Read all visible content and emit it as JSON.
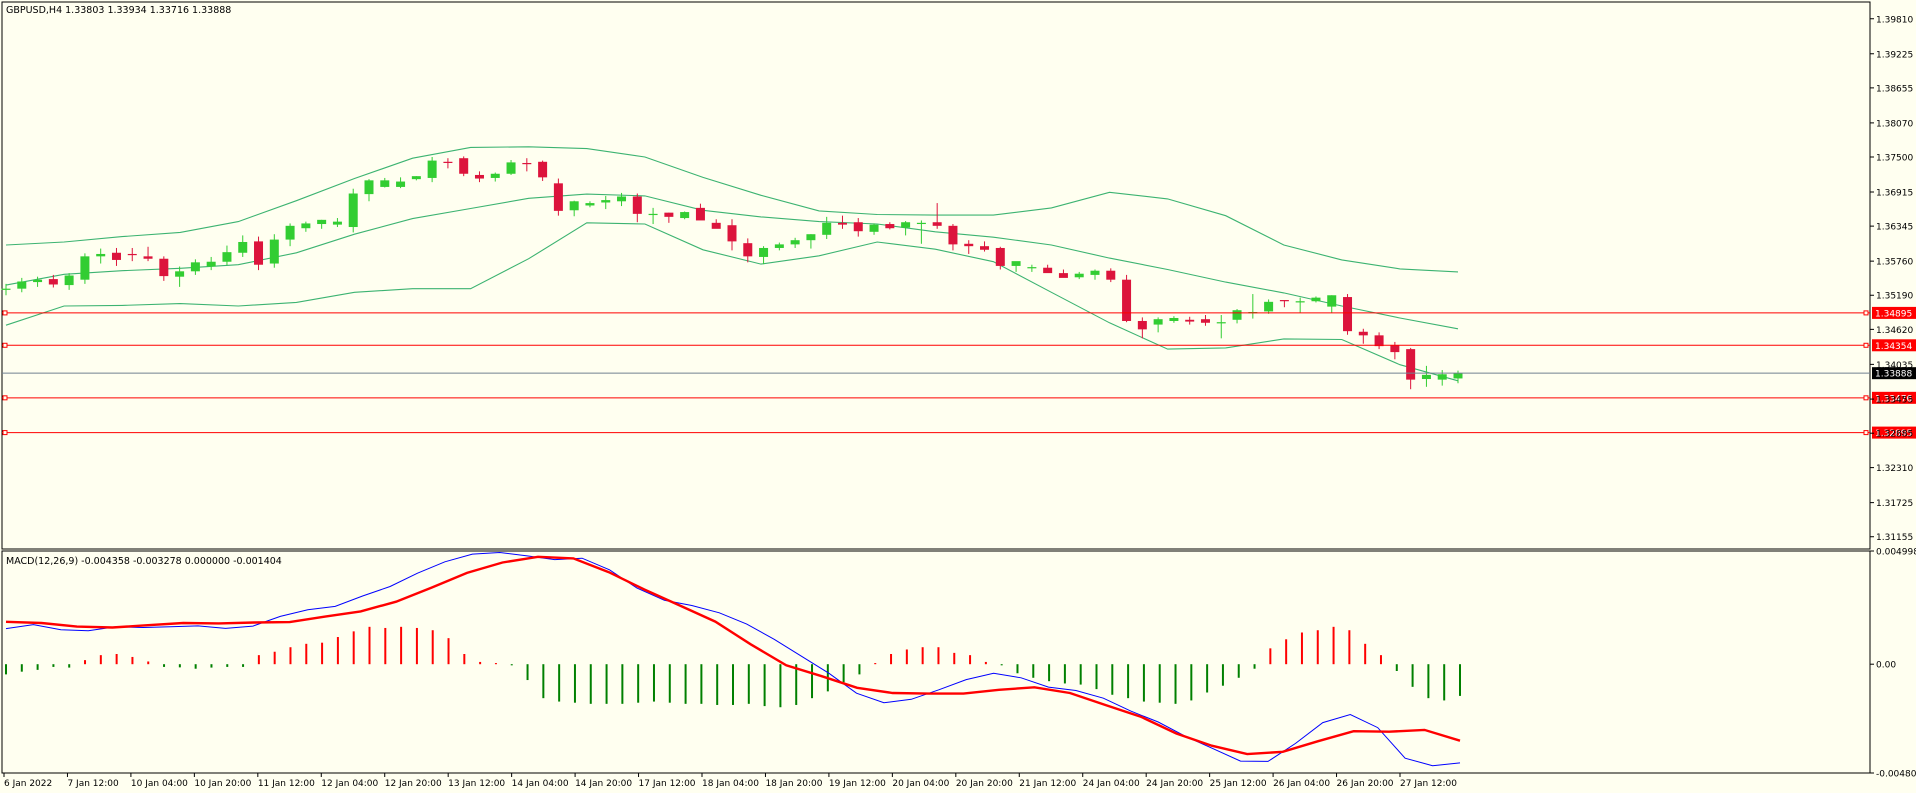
{
  "chart_data": [
    {
      "type": "candlestick",
      "title": "GBPUSD,H4  1.33803 1.33934 1.33716 1.33888",
      "symbol": "GBPUSD",
      "timeframe": "H4",
      "last_ohlc": {
        "open": 1.33803,
        "high": 1.33934,
        "low": 1.33716,
        "close": 1.33888
      },
      "current_price_label": "1.33888",
      "ylim": [
        1.3095,
        1.4009
      ],
      "price_ticks": [
        "1.39810",
        "1.39225",
        "1.38655",
        "1.38070",
        "1.37500",
        "1.36915",
        "1.36345",
        "1.35760",
        "1.35190",
        "1.34620",
        "1.34035",
        "1.33455",
        "1.32885",
        "1.32310",
        "1.31725",
        "1.31155"
      ],
      "x_labels": [
        "6 Jan 2022",
        "7 Jan 12:00",
        "10 Jan 04:00",
        "10 Jan 20:00",
        "11 Jan 12:00",
        "12 Jan 04:00",
        "12 Jan 20:00",
        "13 Jan 12:00",
        "14 Jan 04:00",
        "14 Jan 20:00",
        "17 Jan 12:00",
        "18 Jan 04:00",
        "18 Jan 20:00",
        "19 Jan 12:00",
        "20 Jan 04:00",
        "20 Jan 20:00",
        "21 Jan 12:00",
        "24 Jan 04:00",
        "24 Jan 20:00",
        "25 Jan 12:00",
        "26 Jan 04:00",
        "26 Jan 20:00",
        "27 Jan 12:00"
      ],
      "horizontal_levels": [
        {
          "price": 1.34895,
          "label": "1.34895"
        },
        {
          "price": 1.34354,
          "label": "1.34354"
        },
        {
          "price": 1.33476,
          "label": "1.33476"
        },
        {
          "price": 1.32895,
          "label": "1.32895"
        }
      ],
      "candles": [
        [
          1.3528,
          1.3538,
          1.3519,
          1.353
        ],
        [
          1.353,
          1.3548,
          1.3524,
          1.3542
        ],
        [
          1.3541,
          1.355,
          1.3533,
          1.3545
        ],
        [
          1.3546,
          1.3553,
          1.3532,
          1.3537
        ],
        [
          1.3536,
          1.3556,
          1.3528,
          1.3552
        ],
        [
          1.3545,
          1.3589,
          1.3538,
          1.3584
        ],
        [
          1.3584,
          1.3597,
          1.3572,
          1.3588
        ],
        [
          1.359,
          1.3598,
          1.3568,
          1.3578
        ],
        [
          1.3588,
          1.3598,
          1.3576,
          1.3586
        ],
        [
          1.3584,
          1.36,
          1.3576,
          1.358
        ],
        [
          1.358,
          1.3584,
          1.3543,
          1.3551
        ],
        [
          1.355,
          1.3567,
          1.3533,
          1.3559
        ],
        [
          1.3559,
          1.3579,
          1.3553,
          1.3574
        ],
        [
          1.3567,
          1.3583,
          1.3561,
          1.3575
        ],
        [
          1.3575,
          1.3602,
          1.3569,
          1.3591
        ],
        [
          1.359,
          1.3619,
          1.3583,
          1.3608
        ],
        [
          1.3609,
          1.3617,
          1.3561,
          1.357
        ],
        [
          1.3572,
          1.3621,
          1.3565,
          1.3612
        ],
        [
          1.3612,
          1.3639,
          1.3601,
          1.3635
        ],
        [
          1.3631,
          1.3642,
          1.3625,
          1.3639
        ],
        [
          1.3638,
          1.3645,
          1.363,
          1.3645
        ],
        [
          1.3637,
          1.3648,
          1.3633,
          1.3642
        ],
        [
          1.3633,
          1.3697,
          1.3624,
          1.3689
        ],
        [
          1.3688,
          1.3713,
          1.3676,
          1.3711
        ],
        [
          1.37,
          1.3715,
          1.3699,
          1.3711
        ],
        [
          1.37,
          1.3716,
          1.3698,
          1.3709
        ],
        [
          1.3713,
          1.3718,
          1.3711,
          1.3718
        ],
        [
          1.3715,
          1.375,
          1.3708,
          1.3744
        ],
        [
          1.3742,
          1.3748,
          1.3731,
          1.3741
        ],
        [
          1.3748,
          1.3751,
          1.3718,
          1.3722
        ],
        [
          1.372,
          1.3726,
          1.3708,
          1.3714
        ],
        [
          1.3715,
          1.3724,
          1.3709,
          1.3722
        ],
        [
          1.3722,
          1.3745,
          1.372,
          1.3741
        ],
        [
          1.374,
          1.3748,
          1.3726,
          1.3738
        ],
        [
          1.3742,
          1.3744,
          1.371,
          1.3716
        ],
        [
          1.3706,
          1.3714,
          1.3652,
          1.366
        ],
        [
          1.3661,
          1.3677,
          1.3651,
          1.3676
        ],
        [
          1.3669,
          1.3676,
          1.3666,
          1.3673
        ],
        [
          1.3674,
          1.3685,
          1.3663,
          1.3678
        ],
        [
          1.3676,
          1.369,
          1.3668,
          1.3684
        ],
        [
          1.3684,
          1.3689,
          1.3641,
          1.3655
        ],
        [
          1.3655,
          1.3665,
          1.3638,
          1.3655
        ],
        [
          1.3657,
          1.3657,
          1.364,
          1.365
        ],
        [
          1.3648,
          1.3659,
          1.3646,
          1.3658
        ],
        [
          1.3665,
          1.3672,
          1.3648,
          1.3644
        ],
        [
          1.364,
          1.3646,
          1.3633,
          1.363
        ],
        [
          1.3636,
          1.3646,
          1.3594,
          1.3609
        ],
        [
          1.3606,
          1.3614,
          1.3574,
          1.3584
        ],
        [
          1.3583,
          1.3601,
          1.3571,
          1.3598
        ],
        [
          1.3598,
          1.3607,
          1.3594,
          1.3604
        ],
        [
          1.3604,
          1.3615,
          1.3598,
          1.3611
        ],
        [
          1.3611,
          1.3621,
          1.3597,
          1.3621
        ],
        [
          1.362,
          1.365,
          1.3613,
          1.364
        ],
        [
          1.364,
          1.3652,
          1.363,
          1.3637
        ],
        [
          1.3641,
          1.3648,
          1.3617,
          1.3626
        ],
        [
          1.3625,
          1.3639,
          1.362,
          1.3637
        ],
        [
          1.3638,
          1.3641,
          1.3629,
          1.3631
        ],
        [
          1.3632,
          1.3643,
          1.3619,
          1.3641
        ],
        [
          1.3638,
          1.3644,
          1.3605,
          1.364
        ],
        [
          1.3641,
          1.3673,
          1.363,
          1.3635
        ],
        [
          1.3635,
          1.3638,
          1.3594,
          1.3604
        ],
        [
          1.3605,
          1.3611,
          1.3588,
          1.3601
        ],
        [
          1.3601,
          1.3609,
          1.3592,
          1.3595
        ],
        [
          1.3598,
          1.36,
          1.3562,
          1.3568
        ],
        [
          1.3568,
          1.3574,
          1.3558,
          1.3576
        ],
        [
          1.3566,
          1.357,
          1.3558,
          1.3566
        ],
        [
          1.3565,
          1.357,
          1.3558,
          1.3556
        ],
        [
          1.3556,
          1.3562,
          1.3551,
          1.3548
        ],
        [
          1.3549,
          1.3558,
          1.3546,
          1.3555
        ],
        [
          1.3553,
          1.3562,
          1.3545,
          1.356
        ],
        [
          1.356,
          1.3564,
          1.3541,
          1.3545
        ],
        [
          1.3545,
          1.3553,
          1.3474,
          1.3476
        ],
        [
          1.3476,
          1.3482,
          1.3447,
          1.3462
        ],
        [
          1.347,
          1.3482,
          1.3457,
          1.3479
        ],
        [
          1.3476,
          1.3484,
          1.3473,
          1.3481
        ],
        [
          1.3478,
          1.3483,
          1.347,
          1.3475
        ],
        [
          1.3479,
          1.3486,
          1.3468,
          1.3473
        ],
        [
          1.3473,
          1.3486,
          1.3447,
          1.3474
        ],
        [
          1.3478,
          1.3496,
          1.3472,
          1.3494
        ],
        [
          1.349,
          1.3521,
          1.348,
          1.3491
        ],
        [
          1.3492,
          1.3512,
          1.3488,
          1.3508
        ],
        [
          1.3511,
          1.3511,
          1.3499,
          1.3509
        ],
        [
          1.3508,
          1.3515,
          1.349,
          1.3509
        ],
        [
          1.3509,
          1.3517,
          1.3507,
          1.3515
        ],
        [
          1.35,
          1.3519,
          1.349,
          1.3519
        ],
        [
          1.3516,
          1.3521,
          1.3453,
          1.3459
        ],
        [
          1.3458,
          1.3463,
          1.3438,
          1.3452
        ],
        [
          1.3452,
          1.3457,
          1.3429,
          1.3434
        ],
        [
          1.3435,
          1.3441,
          1.3412,
          1.3424
        ],
        [
          1.3429,
          1.3431,
          1.3362,
          1.3378
        ],
        [
          1.3379,
          1.3401,
          1.3366,
          1.3386
        ],
        [
          1.3378,
          1.3394,
          1.3368,
          1.3387
        ],
        [
          1.338,
          1.3393,
          1.3372,
          1.3389
        ]
      ],
      "bollinger": {
        "upper": [
          1.3603,
          1.3608,
          1.3617,
          1.3624,
          1.3642,
          1.3677,
          1.3714,
          1.3748,
          1.3766,
          1.3767,
          1.3764,
          1.375,
          1.3716,
          1.3686,
          1.366,
          1.3654,
          1.3653,
          1.3653,
          1.3665,
          1.3691,
          1.368,
          1.3652,
          1.3603,
          1.3578,
          1.3563,
          1.3558
        ],
        "middle": [
          1.3536,
          1.3554,
          1.356,
          1.3564,
          1.357,
          1.359,
          1.3621,
          1.3647,
          1.3664,
          1.3681,
          1.3688,
          1.3685,
          1.3661,
          1.365,
          1.3642,
          1.3638,
          1.3625,
          1.3616,
          1.3603,
          1.3581,
          1.3562,
          1.3541,
          1.3523,
          1.3501,
          1.3481,
          1.3463
        ],
        "lower": [
          1.3469,
          1.3501,
          1.3502,
          1.3505,
          1.3501,
          1.3507,
          1.3524,
          1.353,
          1.353,
          1.358,
          1.364,
          1.3638,
          1.3595,
          1.3571,
          1.3585,
          1.3608,
          1.3596,
          1.3575,
          1.3524,
          1.3473,
          1.3429,
          1.3431,
          1.3446,
          1.3445,
          1.3403,
          1.3376
        ]
      }
    },
    {
      "type": "macd",
      "title": "MACD(12,26,9) -0.004358 -0.003278 0.000000 -0.001404",
      "ylim": [
        -0.004804,
        0.004998
      ],
      "y_ticks": [
        "0.004998",
        "0.00",
        "-0.004804"
      ],
      "histogram": [
        -0.00045,
        -0.00033,
        -0.00025,
        -0.00012,
        -0.00015,
        0.00018,
        0.0004,
        0.00045,
        0.00032,
        0.00012,
        -0.00012,
        -0.00014,
        -0.0002,
        -0.00015,
        -0.00012,
        -0.00012,
        0.0004,
        0.00055,
        0.00075,
        0.0009,
        0.00095,
        0.0012,
        0.00145,
        0.00165,
        0.0016,
        0.00165,
        0.0016,
        0.0015,
        0.00115,
        0.00045,
        0.0001,
        5e-05,
        -5e-05,
        -0.0007,
        -0.0015,
        -0.00165,
        -0.0017,
        -0.00175,
        -0.00175,
        -0.00175,
        -0.0017,
        -0.00165,
        -0.0017,
        -0.00175,
        -0.00175,
        -0.0018,
        -0.0018,
        -0.00175,
        -0.00185,
        -0.0019,
        -0.0018,
        -0.0015,
        -0.0012,
        -0.0008,
        -0.00045,
        5e-05,
        0.00045,
        0.00065,
        0.00075,
        0.00075,
        0.0005,
        0.0004,
        0.0001,
        -5e-05,
        -0.0004,
        -0.0006,
        -0.00075,
        -0.00085,
        -0.0009,
        -0.0011,
        -0.00135,
        -0.0015,
        -0.00165,
        -0.0017,
        -0.00175,
        -0.0016,
        -0.00125,
        -0.00095,
        -0.0006,
        -0.0002,
        0.0007,
        0.0011,
        0.0014,
        0.0015,
        0.00165,
        0.0015,
        0.0009,
        0.0004,
        -0.0003,
        -0.001,
        -0.0015,
        -0.0016,
        -0.0014
      ],
      "macd_line": [
        0.00157,
        0.00175,
        0.00152,
        0.00148,
        0.00165,
        0.00162,
        0.00165,
        0.00169,
        0.00158,
        0.00168,
        0.00211,
        0.0024,
        0.00255,
        0.00301,
        0.00343,
        0.00402,
        0.00452,
        0.00486,
        0.00493,
        0.00478,
        0.00462,
        0.00468,
        0.00417,
        0.00336,
        0.00282,
        0.00259,
        0.00227,
        0.00177,
        0.0011,
        0.00035,
        -0.0004,
        -0.00128,
        -0.0017,
        -0.00155,
        -0.00113,
        -0.00068,
        -0.0004,
        -0.0006,
        -0.00101,
        -0.00116,
        -0.0015,
        -0.00207,
        -0.00255,
        -0.00319,
        -0.00373,
        -0.00428,
        -0.00429,
        -0.0035,
        -0.00258,
        -0.00222,
        -0.0028,
        -0.00415,
        -0.00448,
        -0.00436
      ],
      "signal_line": [
        0.00187,
        0.00182,
        0.00166,
        0.00162,
        0.00172,
        0.00182,
        0.0018,
        0.00184,
        0.00186,
        0.0021,
        0.00233,
        0.00276,
        0.00338,
        0.00403,
        0.00449,
        0.00474,
        0.00467,
        0.00406,
        0.0033,
        0.00259,
        0.00188,
        0.00088,
        -5e-05,
        -0.00053,
        -0.00104,
        -0.00127,
        -0.0013,
        -0.0013,
        -0.00113,
        -0.00102,
        -0.00127,
        -0.0018,
        -0.00232,
        -0.00306,
        -0.0036,
        -0.00397,
        -0.00387,
        -0.0034,
        -0.00296,
        -0.00298,
        -0.0029,
        -0.00338
      ]
    }
  ]
}
